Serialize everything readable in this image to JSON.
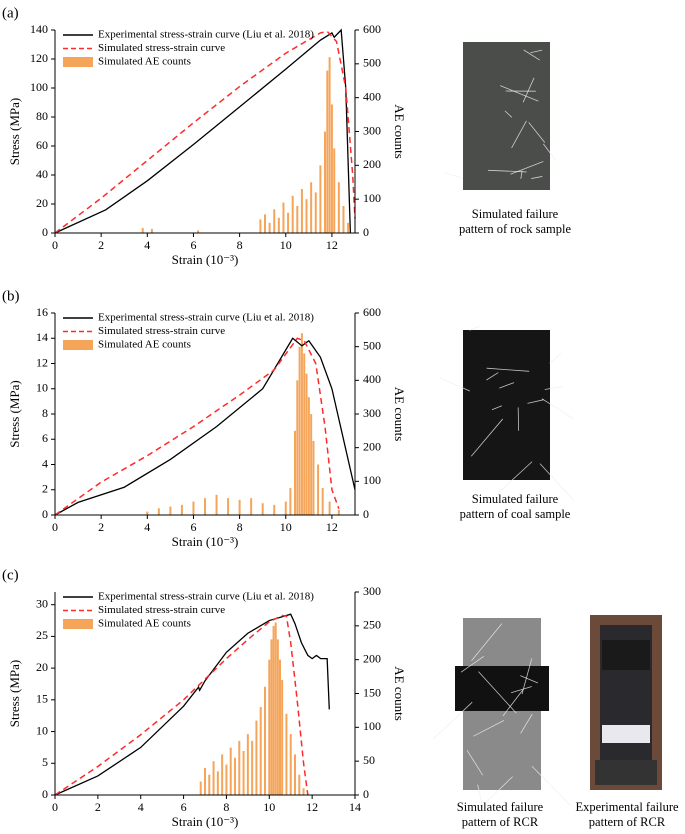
{
  "chart_data": [
    {
      "type": "line",
      "panel_label": "(a)",
      "xlabel": "Strain (10⁻³)",
      "ylabel": "Stress (MPa)",
      "y2label": "AE counts",
      "xlim": [
        0,
        13
      ],
      "xticks": [
        0,
        2,
        4,
        6,
        8,
        10,
        12
      ],
      "ylim": [
        0,
        140
      ],
      "yticks": [
        0,
        20,
        40,
        60,
        80,
        100,
        120,
        140
      ],
      "y2lim": [
        0,
        600
      ],
      "y2ticks": [
        0,
        100,
        200,
        300,
        400,
        500,
        600
      ],
      "series": [
        {
          "name": "Experimental stress-strain curve  (Liu et al. 2018)",
          "color": "#000000",
          "dashed": false,
          "x": [
            0,
            2.2,
            4,
            6,
            8,
            10,
            11.5,
            12,
            12.1,
            12.4,
            12.6,
            12.8
          ],
          "values": [
            0,
            16,
            36,
            61,
            87,
            113,
            133,
            138,
            135,
            140,
            100,
            0
          ]
        },
        {
          "name": "Simulated stress-strain curve",
          "color": "#ff2a2a",
          "dashed": true,
          "x": [
            0,
            2,
            4,
            6,
            8,
            10,
            11.5,
            11.8,
            12.2,
            12.6,
            12.9,
            13
          ],
          "values": [
            0,
            24,
            50,
            76,
            101,
            124,
            138,
            139,
            132,
            100,
            40,
            10
          ]
        },
        {
          "name": "Simulated AE counts",
          "color": "#f5a55a",
          "axis": "y2",
          "type": "bar",
          "x": [
            3.8,
            4.2,
            6.2,
            8.9,
            9.1,
            9.3,
            9.5,
            9.7,
            9.9,
            10.1,
            10.3,
            10.5,
            10.7,
            10.9,
            11.1,
            11.3,
            11.5,
            11.7,
            11.8,
            11.9,
            12.0,
            12.1,
            12.3,
            12.5,
            12.7
          ],
          "values": [
            15,
            12,
            8,
            40,
            55,
            30,
            70,
            45,
            90,
            60,
            110,
            80,
            130,
            100,
            150,
            120,
            200,
            300,
            480,
            520,
            380,
            250,
            150,
            80,
            30
          ]
        }
      ],
      "captions": [
        [
          "Simulated failure",
          "pattern of rock sample"
        ]
      ]
    },
    {
      "type": "line",
      "panel_label": "(b)",
      "xlabel": "Strain (10⁻³)",
      "ylabel": "Stress (MPa)",
      "y2label": "AE counts",
      "xlim": [
        0,
        13
      ],
      "xticks": [
        0,
        2,
        4,
        6,
        8,
        10,
        12
      ],
      "ylim": [
        0,
        16
      ],
      "yticks": [
        0,
        2,
        4,
        6,
        8,
        10,
        12,
        14,
        16
      ],
      "y2lim": [
        0,
        600
      ],
      "y2ticks": [
        0,
        100,
        200,
        300,
        400,
        500,
        600
      ],
      "series": [
        {
          "name": "Experimental stress-strain curve  (Liu et al. 2018)",
          "color": "#000000",
          "dashed": false,
          "x": [
            0,
            1,
            3,
            5,
            7,
            9,
            10.3,
            10.7,
            11,
            11.5,
            12,
            12.5,
            13
          ],
          "values": [
            0,
            1,
            2.2,
            4.4,
            7,
            10,
            14,
            13.4,
            13.8,
            12.5,
            10,
            6,
            2
          ]
        },
        {
          "name": "Simulated stress-strain curve",
          "color": "#ff2a2a",
          "dashed": true,
          "x": [
            0,
            2,
            4,
            6,
            8,
            9.5,
            10.5,
            10.8,
            11.3,
            11.7,
            12,
            12.3
          ],
          "values": [
            0,
            2.6,
            4.7,
            7,
            9.5,
            11.5,
            14,
            13.8,
            12,
            7,
            2,
            0.5
          ]
        },
        {
          "name": "Simulated AE counts",
          "color": "#f5a55a",
          "axis": "y2",
          "type": "bar",
          "x": [
            4,
            4.5,
            5,
            5.5,
            6,
            6.5,
            7,
            7.5,
            8,
            8.5,
            9,
            9.5,
            10,
            10.2,
            10.4,
            10.5,
            10.6,
            10.7,
            10.8,
            10.9,
            11,
            11.1,
            11.2,
            11.4,
            11.6,
            11.9,
            12.3
          ],
          "values": [
            10,
            20,
            25,
            30,
            40,
            50,
            60,
            50,
            45,
            50,
            35,
            30,
            40,
            80,
            250,
            400,
            500,
            540,
            480,
            420,
            350,
            300,
            220,
            150,
            80,
            40,
            15
          ]
        }
      ],
      "captions": [
        [
          "Simulated failure",
          "pattern of coal sample"
        ]
      ]
    },
    {
      "type": "line",
      "panel_label": "(c)",
      "xlabel": "Strain (10⁻³)",
      "ylabel": "Stress (MPa)",
      "y2label": "AE counts",
      "xlim": [
        0,
        14
      ],
      "xticks": [
        0,
        2,
        4,
        6,
        8,
        10,
        12,
        14
      ],
      "ylim": [
        0,
        32
      ],
      "yticks": [
        0,
        5,
        10,
        15,
        20,
        25,
        30
      ],
      "y2lim": [
        0,
        300
      ],
      "y2ticks": [
        0,
        50,
        100,
        150,
        200,
        250,
        300
      ],
      "series": [
        {
          "name": "Experimental stress-strain curve  (Liu et al. 2018)",
          "color": "#000000",
          "dashed": false,
          "x": [
            0,
            2,
            4,
            6,
            6.7,
            6.75,
            7,
            8,
            9,
            10,
            11,
            11.2,
            11.5,
            11.8,
            12,
            12.2,
            12.4,
            12.7,
            12.8
          ],
          "values": [
            0,
            3,
            7.5,
            14,
            17,
            16.5,
            18,
            22.5,
            25.5,
            27.5,
            28.5,
            27,
            24,
            22,
            21.5,
            22,
            21.5,
            21.5,
            13.5
          ]
        },
        {
          "name": "Simulated stress-strain curve",
          "color": "#ff2a2a",
          "dashed": true,
          "x": [
            0,
            2,
            4,
            6,
            8,
            9,
            10,
            10.6,
            10.8,
            11,
            11.3,
            11.6,
            11.8
          ],
          "values": [
            0,
            4.5,
            9.5,
            15,
            21.5,
            24.5,
            27.3,
            28.3,
            28.2,
            24,
            15,
            5,
            0
          ]
        },
        {
          "name": "Simulated AE counts",
          "color": "#f5a55a",
          "axis": "y2",
          "type": "bar",
          "x": [
            6.8,
            7,
            7.2,
            7.4,
            7.6,
            7.8,
            8,
            8.2,
            8.4,
            8.6,
            8.8,
            9,
            9.2,
            9.4,
            9.6,
            9.8,
            10,
            10.1,
            10.2,
            10.3,
            10.4,
            10.5,
            10.6,
            10.8,
            11,
            11.2,
            11.4,
            11.6
          ],
          "values": [
            20,
            40,
            30,
            50,
            35,
            60,
            45,
            70,
            55,
            80,
            65,
            90,
            80,
            110,
            130,
            160,
            200,
            230,
            250,
            255,
            230,
            200,
            170,
            120,
            90,
            60,
            30,
            10
          ]
        }
      ],
      "captions": [
        [
          "Simulated failure",
          "pattern of RCR"
        ],
        [
          "Experimental failure",
          "pattern of RCR"
        ]
      ]
    }
  ]
}
